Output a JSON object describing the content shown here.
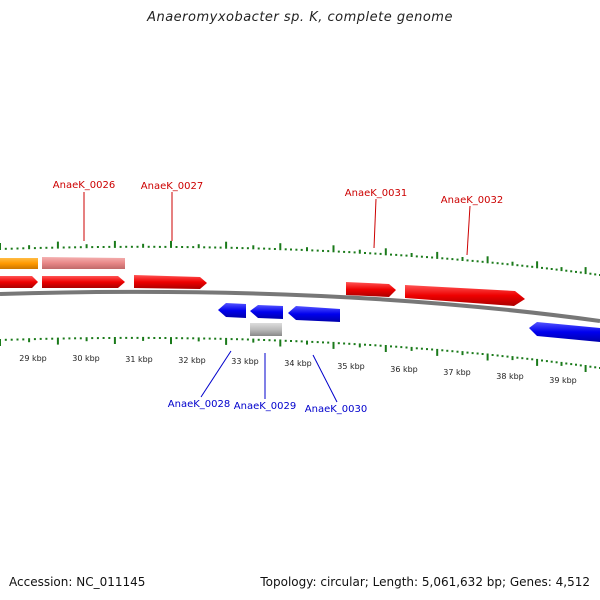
{
  "title": "Anaeromyxobacter sp. K, complete genome",
  "footer": {
    "accession": "Accession: NC_011145",
    "summary": "Topology: circular; Length: 5,061,632 bp; Genes: 4,512"
  },
  "colors": {
    "forward_label": "#cc0000",
    "reverse_label": "#0000cc",
    "ticks": "#1a7a1a",
    "backbone": "#777777",
    "forward_gene": "#ee0000",
    "reverse_gene": "#0000ee",
    "pseudo_gene": "#ee8888",
    "rna_gene": "#ff9900",
    "other_gene": "#bbbbbb"
  },
  "scale_labels": [
    "29 kbp",
    "30 kbp",
    "31 kbp",
    "32 kbp",
    "33 kbp",
    "34 kbp",
    "35 kbp",
    "36 kbp",
    "37 kbp",
    "38 kbp",
    "39 kbp"
  ],
  "forward_labels": [
    "AnaeK_0026",
    "AnaeK_0027",
    "AnaeK_0031",
    "AnaeK_0032"
  ],
  "reverse_labels": [
    "AnaeK_0028",
    "AnaeK_0029",
    "AnaeK_0030"
  ]
}
